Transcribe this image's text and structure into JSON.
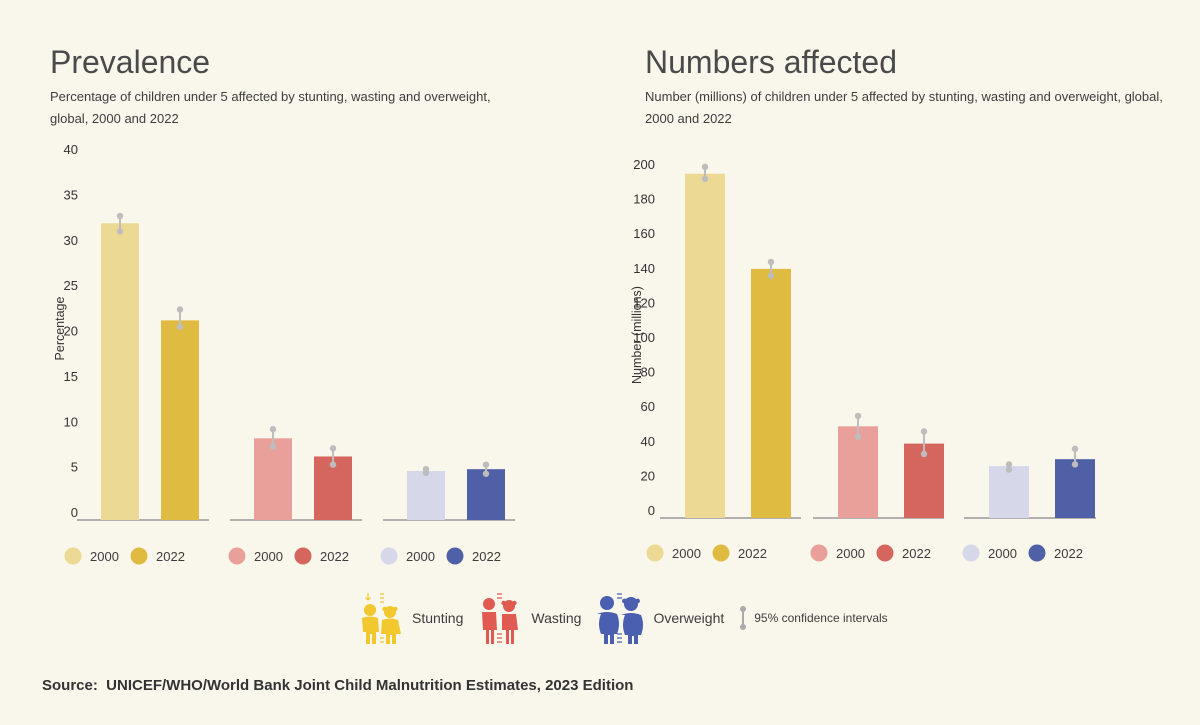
{
  "source": "Source:  UNICEF/WHO/World Bank Joint Child Malnutrition Estimates, 2023 Edition",
  "colors": {
    "background": "#f9f6ec",
    "stunting_2000": "#ecd993",
    "stunting_2022": "#dfbc41",
    "wasting_2000": "#e9a09a",
    "wasting_2022": "#d4665e",
    "overweight_2000": "#d6d8ea",
    "overweight_2022": "#5060a6",
    "ci": "#bdbdbd",
    "axis": "#999999"
  },
  "bottom_legend": {
    "items": [
      {
        "name": "stunting",
        "label": "Stunting",
        "icon": "children-stunting-icon",
        "color": "#f2c82f"
      },
      {
        "name": "wasting",
        "label": "Wasting",
        "icon": "children-wasting-icon",
        "color": "#e05a52"
      },
      {
        "name": "overweight",
        "label": "Overweight",
        "icon": "children-overweight-icon",
        "color": "#4a5fb0"
      }
    ],
    "ci_label": "95% confidence intervals",
    "ci_icon": "confidence-interval-icon"
  },
  "chart_data": [
    {
      "type": "bar",
      "title": "Prevalence",
      "subtitle": "Percentage of children under 5 affected by stunting, wasting and overweight, global, 2000 and 2022",
      "xlabel": "",
      "ylabel": "Percentage",
      "ylim": [
        0,
        40
      ],
      "yticks": [
        0,
        5,
        10,
        15,
        20,
        25,
        30,
        35,
        40
      ],
      "grid": false,
      "categories": [
        "Stunting",
        "Wasting",
        "Overweight"
      ],
      "legend": [
        [
          "2000",
          "2022"
        ],
        [
          "2000",
          "2022"
        ],
        [
          "2000",
          "2022"
        ]
      ],
      "legend_position": "bottom",
      "series": [
        {
          "name": "2000",
          "values": [
            32.7,
            9.0,
            5.4
          ],
          "ci_low": [
            31.8,
            8.1,
            5.2
          ],
          "ci_high": [
            33.5,
            10.0,
            5.6
          ]
        },
        {
          "name": "2022",
          "values": [
            22.0,
            7.0,
            5.6
          ],
          "ci_low": [
            21.3,
            6.1,
            5.1
          ],
          "ci_high": [
            23.2,
            7.9,
            6.1
          ]
        }
      ]
    },
    {
      "type": "bar",
      "title": "Numbers affected",
      "subtitle": "Number (millions) of children under 5 affected by stunting, wasting and overweight, global, 2000 and 2022",
      "xlabel": "",
      "ylabel": "Number (millions)",
      "ylim": [
        0,
        200
      ],
      "yticks": [
        0,
        20,
        40,
        60,
        80,
        100,
        120,
        140,
        160,
        180,
        200
      ],
      "grid": false,
      "categories": [
        "Stunting",
        "Wasting",
        "Overweight"
      ],
      "legend": [
        [
          "2000",
          "2022"
        ],
        [
          "2000",
          "2022"
        ],
        [
          "2000",
          "2022"
        ]
      ],
      "legend_position": "bottom",
      "series": [
        {
          "name": "2000",
          "values": [
            199,
            53,
            30
          ],
          "ci_low": [
            196,
            47,
            28
          ],
          "ci_high": [
            203,
            59,
            31
          ]
        },
        {
          "name": "2022",
          "values": [
            144,
            43,
            34
          ],
          "ci_low": [
            140,
            37,
            31
          ],
          "ci_high": [
            148,
            50,
            40
          ]
        }
      ]
    }
  ]
}
